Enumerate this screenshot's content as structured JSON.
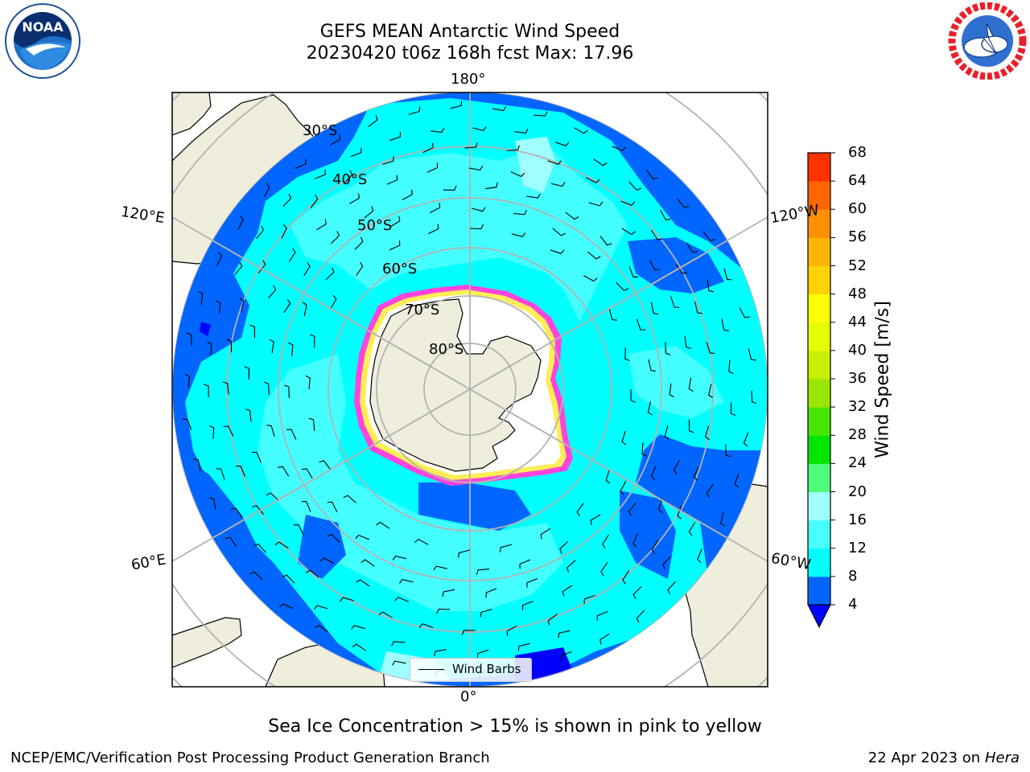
{
  "header": {
    "title_line1": "GEFS MEAN Antarctic Wind Speed",
    "title_line2": "20230420 t06z 168h fcst   Max: 17.96"
  },
  "logos": {
    "left": {
      "name": "noaa-logo",
      "text": "NOAA",
      "ring_text": "NATIONAL OCEANIC AND ATMOSPHERIC ADMINISTRATION · U.S. DEPARTMENT OF COMMERCE"
    },
    "right": {
      "name": "nws-logo",
      "ring_text": "NATIONAL WEATHER SERVICE"
    }
  },
  "map": {
    "projection": "south-polar-stereographic",
    "longitude_labels": {
      "top": "180°",
      "bottom": "0°",
      "upper_left": "120°E",
      "lower_left": "60°E",
      "upper_right": "120°W",
      "lower_right": "60°W"
    },
    "latitude_labels": [
      "30°S",
      "40°S",
      "50°S",
      "60°S",
      "70°S",
      "80°S"
    ],
    "legend": {
      "label": "Wind Barbs"
    }
  },
  "chart_data": {
    "type": "heatmap",
    "title": "GEFS MEAN Antarctic Wind Speed",
    "subtitle": "20230420 t06z 168h fcst   Max: 17.96",
    "max_value": 17.96,
    "colorbar": {
      "label": "Wind Speed [m/s]",
      "ticks": [
        "4",
        "8",
        "12",
        "16",
        "20",
        "24",
        "28",
        "32",
        "36",
        "40",
        "44",
        "48",
        "52",
        "56",
        "60",
        "64",
        "68"
      ],
      "levels": [
        4,
        8,
        12,
        16,
        20,
        24,
        28,
        32,
        36,
        40,
        44,
        48,
        52,
        56,
        60,
        64,
        68
      ],
      "colors": [
        "#0066ff",
        "#00ffff",
        "#48ffff",
        "#a0ffff",
        "#4dff7a",
        "#00e600",
        "#46e600",
        "#9be600",
        "#c8f000",
        "#e6ff00",
        "#ffff00",
        "#ffd200",
        "#ffb400",
        "#ff9100",
        "#ff6400",
        "#ff3200",
        "#ff0000"
      ],
      "under_color": "#0000ff"
    },
    "colors": {
      "land": "#efeddc",
      "ice_shelf": "#ffffff",
      "sea_ice_pink": "#ff44dd",
      "sea_ice_yellow": "#ffee55",
      "grid": "#b3b3b3"
    }
  },
  "footer": {
    "note": "Sea Ice Concentration > 15% is shown in pink to yellow",
    "credit": "NCEP/EMC/Verification Post Processing Product Generation Branch",
    "date": "22 Apr 2023 on ",
    "host": "Hera"
  }
}
